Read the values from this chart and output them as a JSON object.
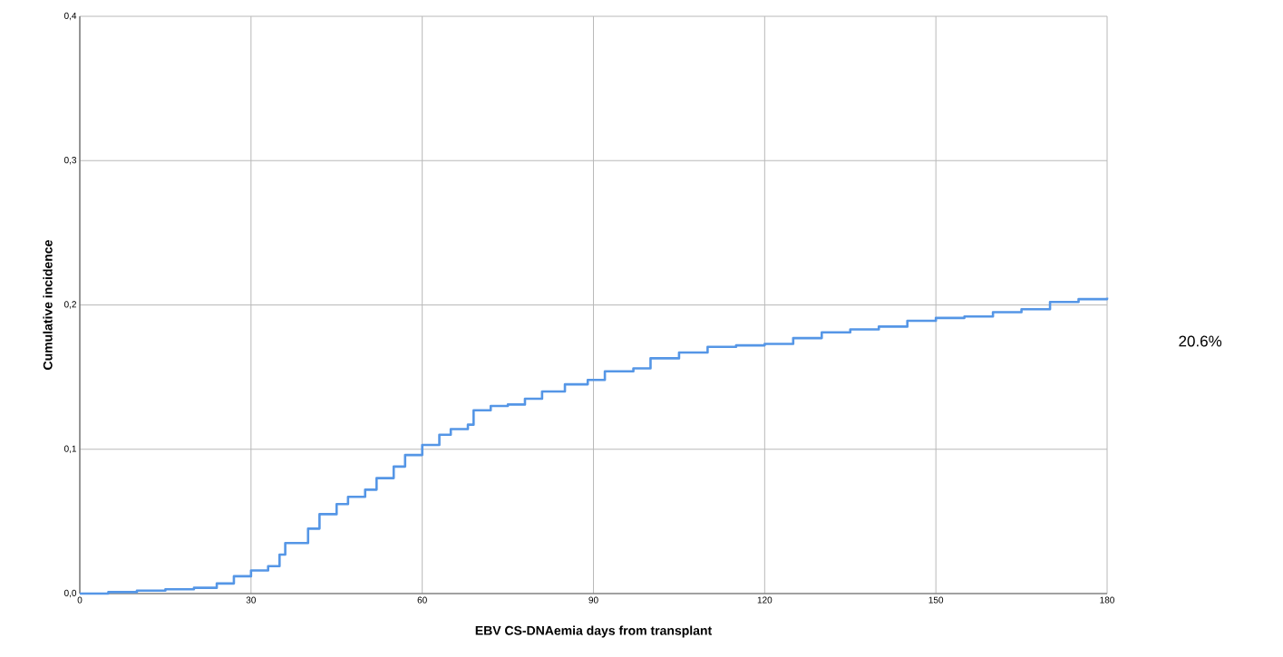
{
  "chart_data": {
    "type": "step",
    "xlabel": "EBV CS-DNAemia days from transplant",
    "ylabel": "Cumulative incidence",
    "xlim": [
      0,
      180
    ],
    "ylim": [
      0,
      0.4
    ],
    "xticks": [
      0,
      30,
      60,
      90,
      120,
      150,
      180
    ],
    "yticks": [
      {
        "value": 0,
        "label": "0,0"
      },
      {
        "value": 0.1,
        "label": "0,1"
      },
      {
        "value": 0.2,
        "label": "0,2"
      },
      {
        "value": 0.3,
        "label": "0,3"
      },
      {
        "value": 0.4,
        "label": "0,4"
      }
    ],
    "grid": true,
    "series": [
      {
        "color": "#5596e6",
        "x": [
          0,
          5,
          10,
          15,
          20,
          24,
          27,
          30,
          33,
          35,
          36,
          40,
          42,
          45,
          47,
          50,
          52,
          55,
          57,
          60,
          63,
          65,
          68,
          69,
          72,
          75,
          78,
          81,
          85,
          89,
          92,
          97,
          100,
          105,
          110,
          115,
          120,
          125,
          130,
          135,
          140,
          145,
          150,
          155,
          160,
          165,
          170,
          175,
          180
        ],
        "values": [
          0,
          0.001,
          0.002,
          0.003,
          0.004,
          0.007,
          0.012,
          0.016,
          0.019,
          0.027,
          0.035,
          0.045,
          0.055,
          0.062,
          0.067,
          0.072,
          0.08,
          0.088,
          0.096,
          0.103,
          0.11,
          0.114,
          0.117,
          0.127,
          0.13,
          0.131,
          0.135,
          0.14,
          0.145,
          0.148,
          0.154,
          0.156,
          0.163,
          0.167,
          0.171,
          0.172,
          0.173,
          0.177,
          0.181,
          0.183,
          0.185,
          0.189,
          0.191,
          0.192,
          0.195,
          0.197,
          0.202,
          0.204,
          0.205
        ]
      }
    ],
    "annotations": [
      "20.6%"
    ]
  }
}
